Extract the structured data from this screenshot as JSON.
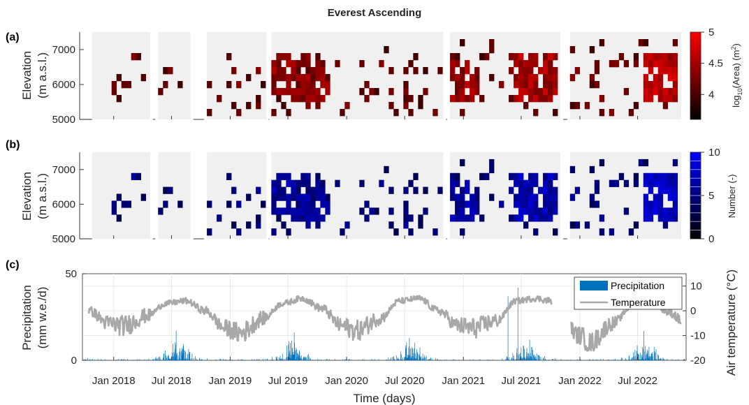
{
  "title": "Everest Ascending",
  "colors": {
    "red": "#ff0000",
    "blue": "#0000ff",
    "gap_bg": "#f0f0f0",
    "precip": "#0072bd",
    "temp": "#a8a8a8"
  },
  "time_axis": {
    "ticks": [
      "Jan 2018",
      "Jul 2018",
      "Jan 2019",
      "Jul 2019",
      "Jan 2020",
      "Jul 2020",
      "Jan 2021",
      "Jul 2021",
      "Jan 2022",
      "Jul 2022"
    ],
    "xlabel": "Time (days)"
  },
  "chart_data": [
    {
      "panel": "(a)",
      "type": "heatmap",
      "ylabel_line1": "Elevation",
      "ylabel_line2": "(m a.s.l.)",
      "yticks": [
        "7000",
        "6000",
        "5000"
      ],
      "ylim": [
        5000,
        7500
      ],
      "colorbar": {
        "label": "log10(Area) (m2)",
        "label_main": "log",
        "label_sub": "10",
        "label_mid": "(Area) (m",
        "label_sup": "2",
        "label_end": ")",
        "ticks": [
          "5",
          "4.5",
          "4"
        ],
        "range": [
          3.6,
          5
        ]
      },
      "observation_windows": [
        [
          "2017-10-25",
          "2018-04-25"
        ],
        [
          "2018-05-20",
          "2018-08-30"
        ],
        [
          "2018-10-20",
          "2019-04-25"
        ],
        [
          "2019-05-10",
          "2020-10-30"
        ],
        [
          "2020-11-20",
          "2021-11-01"
        ],
        [
          "2021-12-01",
          "2022-11-15"
        ]
      ],
      "elevation_bins": [
        5200,
        5400,
        5600,
        5800,
        6000,
        6200,
        6400,
        6600,
        6800,
        7000,
        7200
      ],
      "dense_clusters": [
        {
          "start": "2019-05-15",
          "end": "2019-09-15",
          "elev": [
            5800,
            6800
          ],
          "value": 4.6
        },
        {
          "start": "2019-07-15",
          "end": "2019-11-10",
          "elev": [
            5600,
            6600
          ],
          "value": 4.5
        },
        {
          "start": "2020-11-20",
          "end": "2021-02-15",
          "elev": [
            5600,
            6600
          ],
          "value": 4.6
        },
        {
          "start": "2021-06-01",
          "end": "2021-10-20",
          "elev": [
            5600,
            6800
          ],
          "value": 4.7
        },
        {
          "start": "2022-07-15",
          "end": "2022-11-15",
          "elev": [
            5600,
            6800
          ],
          "value": 4.8
        }
      ]
    },
    {
      "panel": "(b)",
      "type": "heatmap",
      "ylabel_line1": "Elevation",
      "ylabel_line2": "(m a.s.l.)",
      "yticks": [
        "7000",
        "6000",
        "5000"
      ],
      "ylim": [
        5000,
        7500
      ],
      "colorbar": {
        "label": "Number (-)",
        "ticks": [
          "10",
          "5",
          "0"
        ],
        "range": [
          0,
          10
        ]
      },
      "note": "Same cell pattern as panel (a), colored by number of events"
    },
    {
      "panel": "(c)",
      "type": "bar+line",
      "ylabel_line1": "Precipitation",
      "ylabel_line2": "(mm w.e./d)",
      "yticks_left": [
        "50",
        "0"
      ],
      "ylim_left": [
        0,
        50
      ],
      "ylabel_right": "Air temperature (°C)",
      "yticks_right": [
        "10",
        "0",
        "-10",
        "-20"
      ],
      "ylim_right": [
        -20,
        15
      ],
      "legend": [
        "Precipitation",
        "Temperature"
      ],
      "legend_position": "top-right",
      "precipitation_peaks": [
        {
          "date": "2018-07-15",
          "value": 17
        },
        {
          "date": "2019-07-20",
          "value": 16
        },
        {
          "date": "2020-07-15",
          "value": 13
        },
        {
          "date": "2021-05-20",
          "value": 37
        },
        {
          "date": "2021-06-20",
          "value": 42
        },
        {
          "date": "2022-07-20",
          "value": 17
        }
      ],
      "temperature_series": {
        "dates": [
          "2017-10-15",
          "2017-12-15",
          "2018-02-01",
          "2018-04-15",
          "2018-06-15",
          "2018-08-15",
          "2018-10-15",
          "2018-12-15",
          "2019-02-01",
          "2019-04-15",
          "2019-06-15",
          "2019-08-15",
          "2019-10-15",
          "2019-12-15",
          "2020-02-01",
          "2020-04-15",
          "2020-06-15",
          "2020-08-15",
          "2020-10-15",
          "2020-12-15",
          "2021-02-01",
          "2021-04-15",
          "2021-06-15",
          "2021-08-15",
          "2021-10-05",
          "2022-01-01",
          "2022-02-01",
          "2022-04-15",
          "2022-06-15",
          "2022-08-15",
          "2022-10-15",
          "2022-11-15"
        ],
        "values": [
          0,
          -5,
          -6,
          -2,
          3,
          4,
          0,
          -7,
          -9,
          -3,
          3,
          5,
          1,
          -6,
          -8,
          -3,
          4,
          5,
          0,
          -6,
          -7,
          -4,
          4,
          5,
          4,
          -10,
          -13,
          -5,
          2,
          3,
          -1,
          -4
        ]
      }
    }
  ]
}
